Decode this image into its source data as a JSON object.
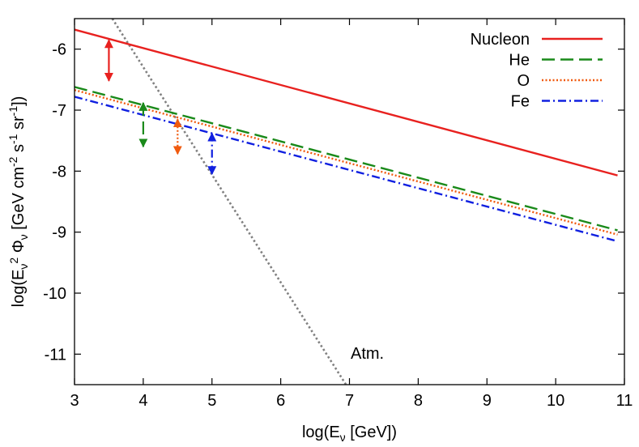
{
  "chart_data": {
    "type": "line",
    "xlabel_parts": [
      "log(E",
      "ν",
      " [GeV])"
    ],
    "ylabel_parts": [
      "log(E",
      "ν",
      "2",
      " Φ",
      "ν",
      " [GeV cm",
      "-2",
      " s",
      "-1",
      " sr",
      "-1",
      "])"
    ],
    "xlim": [
      3,
      11
    ],
    "ylim": [
      -11.5,
      -5.5
    ],
    "xticks": [
      3,
      4,
      5,
      6,
      7,
      8,
      9,
      10,
      11
    ],
    "yticks": [
      -6,
      -7,
      -8,
      -9,
      -10,
      -11
    ],
    "grid": false,
    "legend_position": "top-right",
    "series": [
      {
        "name": "Nucleon",
        "color": "#e8211f",
        "style": "solid",
        "x": [
          3,
          10.9
        ],
        "y": [
          -5.68,
          -8.07
        ]
      },
      {
        "name": "He",
        "color": "#1a8a1a",
        "style": "dashed",
        "x": [
          3,
          10.9
        ],
        "y": [
          -6.62,
          -8.97
        ]
      },
      {
        "name": "O",
        "color": "#f05a0e",
        "style": "dotted",
        "x": [
          3,
          10.9
        ],
        "y": [
          -6.67,
          -9.04
        ]
      },
      {
        "name": "Fe",
        "color": "#1020e0",
        "style": "dashdot",
        "x": [
          3,
          10.9
        ],
        "y": [
          -6.78,
          -9.15
        ]
      }
    ],
    "atmospheric": {
      "label": "Atm.",
      "color": "#808080",
      "style": "dotted",
      "x": [
        3.55,
        6.95
      ],
      "y": [
        -5.5,
        -11.5
      ]
    },
    "error_bars": [
      {
        "series": "Nucleon",
        "x": 3.5,
        "y_low": -6.52,
        "y_high": -5.85,
        "color": "#e8211f"
      },
      {
        "series": "He",
        "x": 4.0,
        "y_low": -7.6,
        "y_high": -6.88,
        "color": "#1a8a1a"
      },
      {
        "series": "O",
        "x": 4.5,
        "y_low": -7.72,
        "y_high": -7.15,
        "color": "#f05a0e"
      },
      {
        "series": "Fe",
        "x": 5.0,
        "y_low": -8.05,
        "y_high": -7.38,
        "color": "#1020e0"
      }
    ]
  }
}
